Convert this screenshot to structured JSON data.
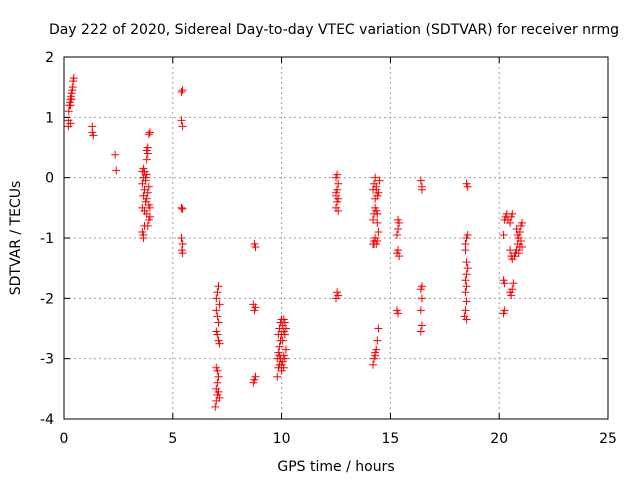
{
  "chart_data": {
    "type": "scatter",
    "title": "Day 222 of 2020, Sidereal Day-to-day VTEC variation (SDTVAR) for receiver nrmg",
    "xlabel": "GPS time / hours",
    "ylabel": "SDTVAR / TECUs",
    "xlim": [
      0,
      25
    ],
    "ylim": [
      -4,
      2
    ],
    "xticks": [
      0,
      5,
      10,
      15,
      20,
      25
    ],
    "yticks": [
      -4,
      -3,
      -2,
      -1,
      0,
      1,
      2
    ],
    "xtick_labels": [
      "0",
      "5",
      "10",
      "15",
      "20",
      "25"
    ],
    "ytick_labels": [
      "-4",
      "-3",
      "-2",
      "-1",
      "0",
      "1",
      "2"
    ],
    "grid": true,
    "marker": "+",
    "color": "#ff0000",
    "series": [
      {
        "name": "SDTVAR",
        "points": [
          [
            0.2,
            0.85
          ],
          [
            0.2,
            0.95
          ],
          [
            0.22,
            1.1
          ],
          [
            0.25,
            1.2
          ],
          [
            0.28,
            1.25
          ],
          [
            0.3,
            1.3
          ],
          [
            0.3,
            0.9
          ],
          [
            0.32,
            1.35
          ],
          [
            0.35,
            1.4
          ],
          [
            0.38,
            1.45
          ],
          [
            0.4,
            1.5
          ],
          [
            0.42,
            1.6
          ],
          [
            0.45,
            1.65
          ],
          [
            0.3,
            1.2
          ],
          [
            0.35,
            1.3
          ],
          [
            1.3,
            0.85
          ],
          [
            1.3,
            0.75
          ],
          [
            1.35,
            0.7
          ],
          [
            2.35,
            0.38
          ],
          [
            2.4,
            0.12
          ],
          [
            3.6,
            -0.9
          ],
          [
            3.65,
            -0.95
          ],
          [
            3.65,
            -1.0
          ],
          [
            3.6,
            -0.5
          ],
          [
            3.65,
            -0.3
          ],
          [
            3.6,
            -0.1
          ],
          [
            3.65,
            0.0
          ],
          [
            3.6,
            0.1
          ],
          [
            3.65,
            0.15
          ],
          [
            3.7,
            -0.2
          ],
          [
            3.75,
            -0.4
          ],
          [
            3.8,
            -0.6
          ],
          [
            3.8,
            0.3
          ],
          [
            3.8,
            0.45
          ],
          [
            3.85,
            0.5
          ],
          [
            3.85,
            -0.8
          ],
          [
            3.9,
            -0.7
          ],
          [
            3.95,
            -0.65
          ],
          [
            3.9,
            0.72
          ],
          [
            3.95,
            0.75
          ],
          [
            3.9,
            -0.15
          ],
          [
            3.85,
            -0.25
          ],
          [
            3.8,
            0.05
          ],
          [
            3.7,
            0.1
          ],
          [
            3.75,
            -0.05
          ],
          [
            3.8,
            -0.35
          ],
          [
            3.9,
            -0.45
          ],
          [
            3.85,
            0.4
          ],
          [
            3.7,
            -0.55
          ],
          [
            3.95,
            -0.5
          ],
          [
            3.75,
            0.0
          ],
          [
            3.7,
            -0.8
          ],
          [
            5.4,
            1.42
          ],
          [
            5.45,
            1.45
          ],
          [
            5.4,
            0.95
          ],
          [
            5.45,
            0.85
          ],
          [
            5.4,
            -0.5
          ],
          [
            5.45,
            -0.52
          ],
          [
            5.4,
            -1.0
          ],
          [
            5.45,
            -1.1
          ],
          [
            5.42,
            -1.2
          ],
          [
            5.45,
            -1.25
          ],
          [
            6.95,
            -3.8
          ],
          [
            7.0,
            -3.7
          ],
          [
            7.05,
            -3.6
          ],
          [
            7.0,
            -3.5
          ],
          [
            7.05,
            -3.4
          ],
          [
            7.1,
            -3.3
          ],
          [
            7.05,
            -3.2
          ],
          [
            7.0,
            -3.15
          ],
          [
            7.1,
            -3.55
          ],
          [
            7.15,
            -3.65
          ],
          [
            7.0,
            -2.55
          ],
          [
            7.05,
            -2.6
          ],
          [
            7.1,
            -2.7
          ],
          [
            7.15,
            -2.75
          ],
          [
            7.0,
            -2.2
          ],
          [
            7.05,
            -2.3
          ],
          [
            7.1,
            -2.4
          ],
          [
            7.0,
            -2.0
          ],
          [
            7.05,
            -1.9
          ],
          [
            7.1,
            -1.8
          ],
          [
            7.15,
            -2.1
          ],
          [
            8.7,
            -3.4
          ],
          [
            8.75,
            -3.35
          ],
          [
            8.8,
            -3.3
          ],
          [
            8.75,
            -2.2
          ],
          [
            8.8,
            -2.15
          ],
          [
            8.7,
            -2.1
          ],
          [
            8.8,
            -1.15
          ],
          [
            8.75,
            -1.1
          ],
          [
            9.8,
            -3.3
          ],
          [
            9.85,
            -3.15
          ],
          [
            9.8,
            -3.0
          ],
          [
            9.9,
            -2.95
          ],
          [
            9.85,
            -2.9
          ],
          [
            9.9,
            -2.8
          ],
          [
            9.95,
            -2.7
          ],
          [
            9.85,
            -2.6
          ],
          [
            9.9,
            -2.5
          ],
          [
            9.95,
            -2.4
          ],
          [
            10.0,
            -2.35
          ],
          [
            10.05,
            -2.45
          ],
          [
            10.1,
            -2.55
          ],
          [
            10.15,
            -2.4
          ],
          [
            10.2,
            -2.5
          ],
          [
            10.0,
            -3.1
          ],
          [
            10.05,
            -3.05
          ],
          [
            10.1,
            -2.95
          ],
          [
            10.15,
            -3.0
          ],
          [
            10.2,
            -2.85
          ],
          [
            10.0,
            -3.2
          ],
          [
            10.1,
            -3.15
          ],
          [
            9.9,
            -3.1
          ],
          [
            10.0,
            -2.6
          ],
          [
            10.05,
            -2.7
          ],
          [
            10.15,
            -2.6
          ],
          [
            9.95,
            -3.0
          ],
          [
            10.1,
            -2.35
          ],
          [
            12.5,
            -2.0
          ],
          [
            12.55,
            -1.9
          ],
          [
            12.6,
            -1.95
          ],
          [
            12.5,
            -0.5
          ],
          [
            12.55,
            -0.4
          ],
          [
            12.5,
            -0.3
          ],
          [
            12.55,
            -0.2
          ],
          [
            12.6,
            -0.1
          ],
          [
            12.5,
            0.0
          ],
          [
            12.55,
            0.05
          ],
          [
            12.6,
            -0.55
          ],
          [
            12.5,
            -0.25
          ],
          [
            12.6,
            -0.35
          ],
          [
            14.2,
            -3.1
          ],
          [
            14.25,
            -3.0
          ],
          [
            14.3,
            -2.9
          ],
          [
            14.35,
            -2.85
          ],
          [
            14.4,
            -2.7
          ],
          [
            14.45,
            -2.5
          ],
          [
            14.2,
            -1.1
          ],
          [
            14.25,
            -1.05
          ],
          [
            14.3,
            -1.0
          ],
          [
            14.35,
            -1.1
          ],
          [
            14.4,
            -1.05
          ],
          [
            14.45,
            -0.9
          ],
          [
            14.2,
            -0.7
          ],
          [
            14.25,
            -0.6
          ],
          [
            14.3,
            -0.5
          ],
          [
            14.35,
            -0.55
          ],
          [
            14.4,
            -0.6
          ],
          [
            14.2,
            -0.2
          ],
          [
            14.25,
            -0.1
          ],
          [
            14.3,
            0.0
          ],
          [
            14.35,
            -0.15
          ],
          [
            14.4,
            -0.3
          ],
          [
            14.45,
            -0.25
          ],
          [
            14.5,
            -0.05
          ],
          [
            14.3,
            -0.35
          ],
          [
            14.4,
            -0.75
          ],
          [
            14.25,
            -1.1
          ],
          [
            14.3,
            -2.95
          ],
          [
            14.35,
            -0.2
          ],
          [
            15.3,
            -2.2
          ],
          [
            15.35,
            -2.25
          ],
          [
            15.3,
            -1.25
          ],
          [
            15.35,
            -1.2
          ],
          [
            15.3,
            -0.95
          ],
          [
            15.35,
            -0.85
          ],
          [
            15.4,
            -0.75
          ],
          [
            15.35,
            -0.7
          ],
          [
            15.4,
            -1.3
          ],
          [
            16.4,
            -2.55
          ],
          [
            16.45,
            -2.45
          ],
          [
            16.4,
            -2.2
          ],
          [
            16.45,
            -2.0
          ],
          [
            16.4,
            -1.85
          ],
          [
            16.45,
            -1.8
          ],
          [
            16.4,
            -0.05
          ],
          [
            16.45,
            -0.15
          ],
          [
            16.45,
            -0.2
          ],
          [
            18.4,
            -2.3
          ],
          [
            18.45,
            -2.2
          ],
          [
            18.5,
            -2.05
          ],
          [
            18.45,
            -1.9
          ],
          [
            18.5,
            -1.8
          ],
          [
            18.45,
            -1.7
          ],
          [
            18.5,
            -1.6
          ],
          [
            18.55,
            -1.5
          ],
          [
            18.45,
            -1.1
          ],
          [
            18.5,
            -1.0
          ],
          [
            18.55,
            -0.95
          ],
          [
            18.45,
            -1.2
          ],
          [
            18.5,
            -1.4
          ],
          [
            18.5,
            -0.1
          ],
          [
            18.55,
            -0.15
          ],
          [
            18.5,
            -2.35
          ],
          [
            20.2,
            -2.25
          ],
          [
            20.25,
            -2.2
          ],
          [
            20.2,
            -1.7
          ],
          [
            20.25,
            -1.75
          ],
          [
            20.2,
            -0.95
          ],
          [
            20.25,
            -0.7
          ],
          [
            20.3,
            -0.65
          ],
          [
            20.35,
            -0.6
          ],
          [
            20.4,
            -0.7
          ],
          [
            20.5,
            -0.75
          ],
          [
            20.55,
            -0.65
          ],
          [
            20.6,
            -0.6
          ],
          [
            20.5,
            -1.2
          ],
          [
            20.55,
            -1.3
          ],
          [
            20.6,
            -1.35
          ],
          [
            20.5,
            -1.9
          ],
          [
            20.55,
            -1.95
          ],
          [
            20.6,
            -1.85
          ],
          [
            20.65,
            -1.75
          ],
          [
            20.7,
            -1.3
          ],
          [
            20.75,
            -1.25
          ],
          [
            20.8,
            -1.2
          ],
          [
            20.85,
            -1.1
          ],
          [
            20.9,
            -1.0
          ],
          [
            20.95,
            -0.9
          ],
          [
            21.0,
            -0.8
          ],
          [
            21.05,
            -0.75
          ],
          [
            20.9,
            -1.25
          ],
          [
            20.95,
            -1.15
          ],
          [
            21.0,
            -1.05
          ],
          [
            21.05,
            -1.15
          ],
          [
            20.85,
            -0.95
          ],
          [
            20.8,
            -0.85
          ]
        ]
      }
    ]
  }
}
